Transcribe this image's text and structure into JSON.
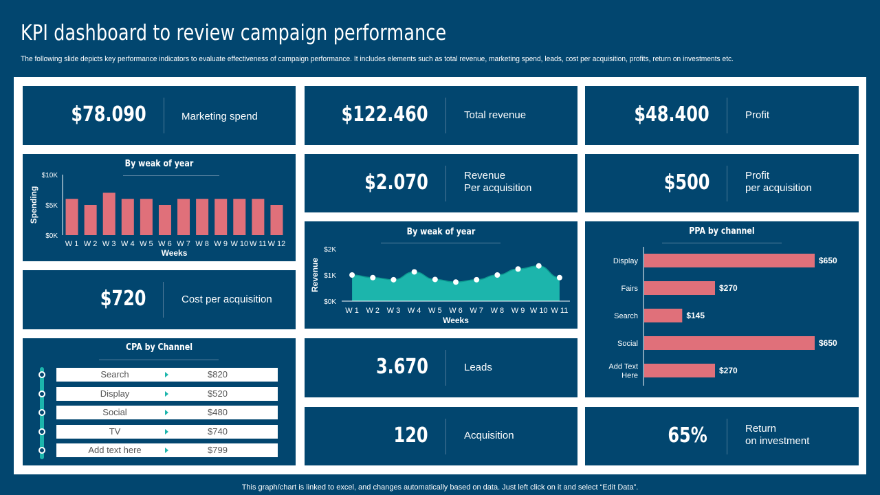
{
  "header": {
    "title": "KPI dashboard to review campaign performance",
    "subtitle": "The following slide depicts key performance indicators to evaluate effectiveness of campaign performance. It includes elements such as total revenue, marketing spend, leads, cost per acquisition, profits, return on investments etc."
  },
  "kpis": {
    "marketing_spend": {
      "value": "$78.090",
      "label": "Marketing spend"
    },
    "total_revenue": {
      "value": "$122.460",
      "label": "Total revenue"
    },
    "profit": {
      "value": "$48.400",
      "label": "Profit"
    },
    "revenue_per_acq": {
      "value": "$2.070",
      "label1": "Revenue",
      "label2": "Per acquisition"
    },
    "profit_per_acq": {
      "value": "$500",
      "label1": "Profit",
      "label2": "per acquisition"
    },
    "cost_per_acq": {
      "value": "$720",
      "label": "Cost per acquisition"
    },
    "leads": {
      "value": "3.670",
      "label": "Leads"
    },
    "acquisition": {
      "value": "120",
      "label": "Acquisition"
    },
    "roi": {
      "value": "65%",
      "label1": "Return",
      "label2": "on investment"
    }
  },
  "cpa_table": {
    "title": "CPA by Channel",
    "rows": [
      {
        "channel": "Search",
        "value": "$820"
      },
      {
        "channel": "Display",
        "value": "$520"
      },
      {
        "channel": "Social",
        "value": "$480"
      },
      {
        "channel": "TV",
        "value": "$740"
      },
      {
        "channel": "Add text here",
        "value": "$799"
      }
    ]
  },
  "footer": "This graph/chart is linked to excel,  and changes automatically based on data. Just left click on it and select “Edit Data”.",
  "colors": {
    "bg": "#02466f",
    "bar": "#e0707a",
    "teal": "#1cb5ac"
  },
  "chart_data": [
    {
      "type": "bar",
      "title": "By weak of year",
      "xlabel": "Weeks",
      "ylabel": "Spending",
      "categories": [
        "W 1",
        "W 2",
        "W 3",
        "W 4",
        "W 5",
        "W 6",
        "W 7",
        "W 8",
        "W 9",
        "W 10",
        "W 11",
        "W 12"
      ],
      "values": [
        6000,
        5000,
        7000,
        6000,
        6000,
        5000,
        6000,
        6000,
        6000,
        6000,
        6000,
        5000
      ],
      "ylim": [
        0,
        10000
      ],
      "yticks": [
        "$0K",
        "$5K",
        "$10K"
      ]
    },
    {
      "type": "area",
      "title": "By weak of year",
      "xlabel": "Weeks",
      "ylabel": "Revenue",
      "categories": [
        "W 1",
        "W 2",
        "W 3",
        "W 4",
        "W 5",
        "W 6",
        "W 7",
        "W 8",
        "W 9",
        "W 10",
        "W 11"
      ],
      "values": [
        1000,
        900,
        820,
        1120,
        830,
        730,
        820,
        1000,
        1230,
        1350,
        900
      ],
      "ylim": [
        0,
        2000
      ],
      "yticks": [
        "$0K",
        "$1K",
        "$2K"
      ]
    },
    {
      "type": "bar",
      "orientation": "horizontal",
      "title": "PPA by channel",
      "categories": [
        "Display",
        "Fairs",
        "Search",
        "Social",
        "Add Text Here"
      ],
      "category_lines": [
        [
          "Display"
        ],
        [
          "Fairs"
        ],
        [
          "Search"
        ],
        [
          "Social"
        ],
        [
          "Add Text",
          "Here"
        ]
      ],
      "values": [
        650,
        270,
        145,
        650,
        270
      ],
      "labels": [
        "$650",
        "$270",
        "$145",
        "$650",
        "$270"
      ],
      "xlim": [
        0,
        650
      ]
    }
  ]
}
